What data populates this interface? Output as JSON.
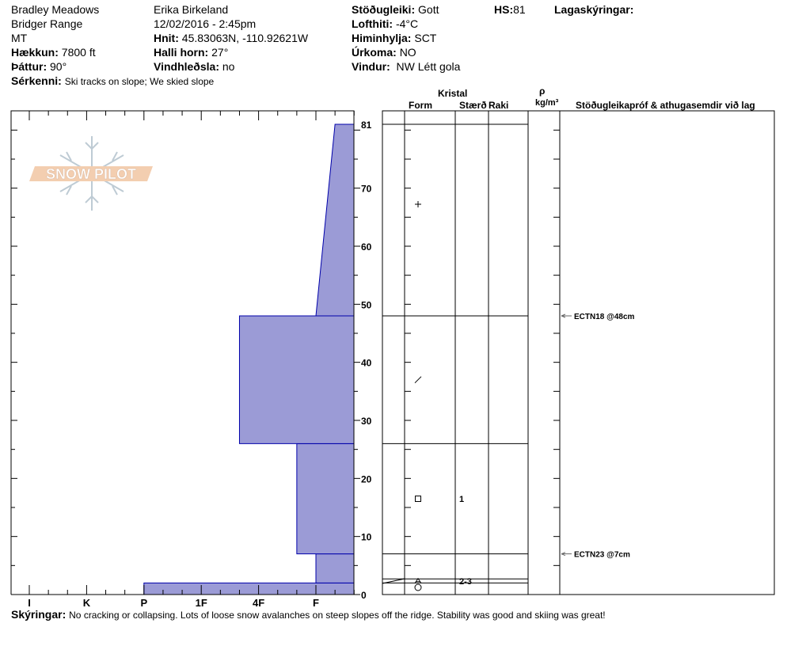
{
  "header": {
    "location": "Bradley Meadows",
    "range": "Bridger Range",
    "state": "MT",
    "elevation_label": "Hækkun:",
    "elevation": "7800 ft",
    "aspect_label": "Þáttur:",
    "aspect": "90°",
    "observer": "Erika Birkeland",
    "datetime": "12/02/2016 - 2:45pm",
    "coords_label": "Hnit:",
    "coords": "45.83063N, -110.92621W",
    "slope_label": "Halli horn:",
    "slope": "27°",
    "wind_loading_label": "Vindhleðsla:",
    "wind_loading": "no",
    "stability_label": "Stöðugleiki:",
    "stability": "Gott",
    "air_temp_label": "Lofthiti:",
    "air_temp": "-4°C",
    "sky_label": "Himinhylja:",
    "sky": "SCT",
    "precip_label": "Úrkoma:",
    "precip": "NO",
    "wind_label": "Vindur:",
    "wind": "NW Létt gola",
    "hs_label": "HS:",
    "hs": "81",
    "layer_notes_label": "Lagaskýringar:",
    "features_label": "Sérkenni:",
    "features": "Ski tracks on slope; We skied slope"
  },
  "table_headers": {
    "crystal": "Kristal",
    "form": "Form",
    "size": "Stærð",
    "moisture": "Raki",
    "rho": "ρ",
    "density_unit": "kg/m³",
    "tests": "Stöðugleikapróf & athugasemdir við lag"
  },
  "footer": {
    "comments_label": "Skýringar:",
    "comments": "No cracking or collapsing. Lots of loose snow avalanches on steep slopes off the ridge. Stability was good and skiing was great!"
  },
  "logo_text": "SNOW PILOT",
  "colors": {
    "hardness_fill": "#9b9bd6",
    "hardness_stroke": "#0000aa",
    "logo_orange": "#f2c9a8",
    "logo_flake": "#b8c6d0"
  },
  "chart_data": {
    "type": "bar",
    "orientation": "horizontal",
    "ylabel": "",
    "ylim": [
      0,
      81
    ],
    "y_ticks": [
      "0",
      "10",
      "20",
      "30",
      "40",
      "50",
      "60",
      "70",
      "81"
    ],
    "hardness_scale": [
      "I",
      "K",
      "P",
      "1F",
      "4F",
      "F"
    ],
    "layers": [
      {
        "bottom": 0,
        "top": 2,
        "hardness_bottom": "P",
        "hardness_top": "P",
        "grain_form": "rounded-circle-icon",
        "size": ""
      },
      {
        "bottom": 2,
        "top": 7,
        "hardness_bottom": "F",
        "hardness_top": "F",
        "grain_form": "depth-hoar-icon",
        "size": "2-3"
      },
      {
        "bottom": 7,
        "top": 26,
        "hardness_bottom": "F+",
        "hardness_top": "F+",
        "grain_form": "faceted-square-icon",
        "size": "1"
      },
      {
        "bottom": 26,
        "top": 48,
        "hardness_bottom": "4F+",
        "hardness_top": "4F+",
        "grain_form": "decomposing-slash-icon",
        "size": ""
      },
      {
        "bottom": 48,
        "top": 81,
        "hardness_bottom": "F",
        "hardness_top": "F-",
        "grain_form": "new-snow-plus-icon",
        "size": ""
      }
    ],
    "tests": [
      {
        "label": "ECTN18 @48cm",
        "depth": 48
      },
      {
        "label": "ECTN23 @7cm",
        "depth": 7
      }
    ]
  }
}
